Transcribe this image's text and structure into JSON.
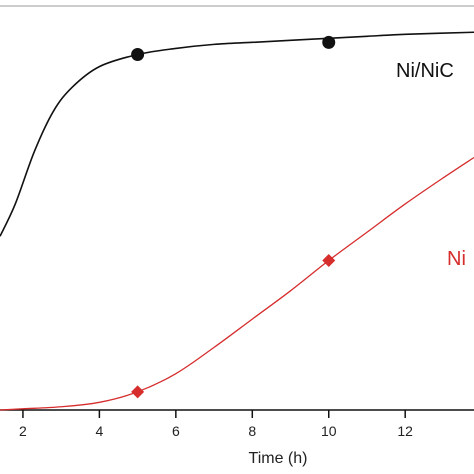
{
  "chart_data": {
    "type": "line",
    "title": "",
    "xlabel": "Time (h)",
    "ylabel": "",
    "xlim": [
      1.4,
      13.8
    ],
    "ylim": [
      0,
      1
    ],
    "x_ticks": [
      2,
      4,
      6,
      8,
      10,
      12
    ],
    "grid": false,
    "series": [
      {
        "name": "Ni/NiC",
        "color": "#111111",
        "marker": "circle",
        "points": [
          [
            5,
            0.88
          ],
          [
            10,
            0.91
          ]
        ],
        "curve": [
          [
            1.4,
            0.43
          ],
          [
            1.8,
            0.51
          ],
          [
            2.3,
            0.64
          ],
          [
            2.8,
            0.74
          ],
          [
            3.3,
            0.8
          ],
          [
            4.0,
            0.85
          ],
          [
            5.0,
            0.88
          ],
          [
            6.0,
            0.895
          ],
          [
            7.0,
            0.905
          ],
          [
            8.0,
            0.91
          ],
          [
            9.0,
            0.915
          ],
          [
            10.0,
            0.92
          ],
          [
            11.0,
            0.925
          ],
          [
            12.0,
            0.93
          ],
          [
            13.8,
            0.935
          ]
        ]
      },
      {
        "name": "Ni",
        "color": "#d62d2d",
        "marker": "diamond",
        "points": [
          [
            5,
            0.045
          ],
          [
            10,
            0.37
          ]
        ],
        "curve": [
          [
            1.4,
            0.0
          ],
          [
            2.0,
            0.003
          ],
          [
            3.0,
            0.008
          ],
          [
            4.0,
            0.019
          ],
          [
            5.0,
            0.045
          ],
          [
            6.0,
            0.09
          ],
          [
            7.0,
            0.155
          ],
          [
            8.0,
            0.225
          ],
          [
            9.0,
            0.295
          ],
          [
            10.0,
            0.37
          ],
          [
            11.0,
            0.44
          ],
          [
            12.0,
            0.51
          ],
          [
            13.0,
            0.575
          ],
          [
            13.8,
            0.625
          ]
        ]
      }
    ]
  }
}
